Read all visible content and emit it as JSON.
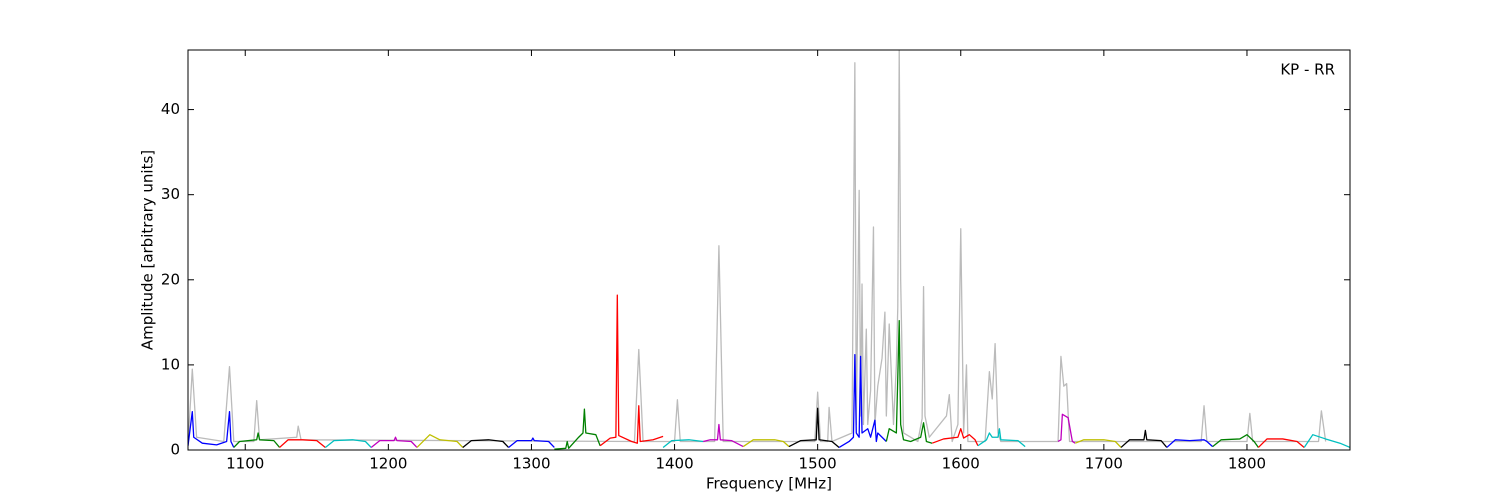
{
  "chart_data": {
    "type": "line",
    "xlabel": "Frequency [MHz]",
    "ylabel": "Amplitude [arbitrary units]",
    "annotation": "KP - RR",
    "xlim": [
      1060,
      1872
    ],
    "ylim": [
      0,
      47
    ],
    "xticks": [
      1100,
      1200,
      1300,
      1400,
      1500,
      1600,
      1700,
      1800
    ],
    "yticks": [
      0,
      10,
      20,
      30,
      40
    ],
    "series": [
      {
        "color": "#bbbbbb",
        "x": [
          1060,
          1063,
          1066,
          1085,
          1089,
          1092,
          1106,
          1108,
          1110,
          1136,
          1137,
          1139,
          1372,
          1375,
          1378,
          1400,
          1402,
          1404,
          1428,
          1431,
          1434,
          1498,
          1500,
          1502,
          1507,
          1508,
          1510,
          1524,
          1526,
          1527,
          1529,
          1530,
          1531,
          1532,
          1534,
          1535,
          1537,
          1539,
          1540,
          1542,
          1545,
          1547,
          1548,
          1550,
          1553,
          1555,
          1556,
          1557,
          1558,
          1560,
          1570,
          1573,
          1574,
          1575,
          1578,
          1590,
          1592,
          1594,
          1598,
          1600,
          1602,
          1604,
          1605,
          1607,
          1617,
          1620,
          1622,
          1624,
          1626,
          1628,
          1668,
          1670,
          1672,
          1674,
          1676,
          1768,
          1770,
          1772,
          1800,
          1802,
          1804,
          1850,
          1852,
          1855
        ],
        "values": [
          0.5,
          9.5,
          1.5,
          1,
          9.8,
          1,
          1,
          5.8,
          1.2,
          1.5,
          2.8,
          1.2,
          1,
          11.8,
          1,
          1,
          5.9,
          1,
          1,
          24,
          1,
          1,
          6.8,
          1,
          1,
          5.0,
          1,
          2,
          45.5,
          3,
          30.5,
          4,
          19.5,
          3,
          14.2,
          3,
          7,
          26.2,
          3,
          7.5,
          10.8,
          16.2,
          4,
          14.8,
          3,
          10,
          16.8,
          47,
          20,
          2,
          1,
          3.7,
          19.2,
          4,
          1.5,
          4,
          6.5,
          1,
          3,
          26,
          2,
          10,
          1,
          1,
          1,
          9.2,
          6,
          12.5,
          2,
          1,
          1,
          11,
          7.5,
          7.8,
          1,
          1,
          5.2,
          1,
          1,
          4.3,
          1,
          1,
          4.6,
          1
        ]
      },
      {
        "color": "#0000ff",
        "x": [
          1060,
          1063,
          1064,
          1070,
          1080,
          1087,
          1089,
          1090,
          1092
        ],
        "values": [
          0.5,
          4.5,
          1.5,
          0.8,
          0.6,
          1,
          4.5,
          1,
          0.3
        ]
      },
      {
        "color": "#008000",
        "x": [
          1092,
          1096,
          1108,
          1109,
          1110,
          1120,
          1124
        ],
        "values": [
          0.3,
          1,
          1.2,
          2,
          1.2,
          1.1,
          0.3
        ]
      },
      {
        "color": "#ff0000",
        "x": [
          1124,
          1130,
          1140,
          1150,
          1156
        ],
        "values": [
          0.3,
          1.2,
          1.2,
          1.1,
          0.3
        ]
      },
      {
        "color": "#00bfbf",
        "x": [
          1156,
          1162,
          1175,
          1184,
          1188
        ],
        "values": [
          0.3,
          1.1,
          1.2,
          1,
          0.3
        ]
      },
      {
        "color": "#bf00bf",
        "x": [
          1188,
          1194,
          1204,
          1205,
          1206,
          1216,
          1220
        ],
        "values": [
          0.3,
          1.1,
          1.1,
          1.5,
          1.1,
          1,
          0.3
        ]
      },
      {
        "color": "#bfbf00",
        "x": [
          1220,
          1229,
          1236,
          1248,
          1252
        ],
        "values": [
          0.3,
          1.8,
          1.2,
          1,
          0.3
        ]
      },
      {
        "color": "#000000",
        "x": [
          1252,
          1258,
          1270,
          1280,
          1284
        ],
        "values": [
          0.3,
          1.1,
          1.2,
          1,
          0.3
        ]
      },
      {
        "color": "#0000ff",
        "x": [
          1284,
          1290,
          1300,
          1301,
          1302,
          1312,
          1316
        ],
        "values": [
          0.3,
          1.1,
          1.1,
          1.4,
          1.1,
          1,
          0.3
        ]
      },
      {
        "color": "#008000",
        "x": [
          1316,
          1324,
          1325,
          1326,
          1333,
          1336,
          1337,
          1338,
          1345,
          1348
        ],
        "values": [
          0.1,
          0.2,
          1,
          0.2,
          1.5,
          2,
          4.8,
          2,
          1.8,
          0.5
        ]
      },
      {
        "color": "#ff0000",
        "x": [
          1348,
          1355,
          1359,
          1360,
          1361,
          1370,
          1374,
          1375,
          1376,
          1385,
          1392
        ],
        "values": [
          0.5,
          1.4,
          1.5,
          18.2,
          1.7,
          1,
          0.8,
          5.2,
          1,
          1.2,
          1.6
        ]
      },
      {
        "color": "#00bfbf",
        "x": [
          1392,
          1398,
          1410,
          1420
        ],
        "values": [
          0.3,
          1.1,
          1.2,
          1
        ]
      },
      {
        "color": "#bf00bf",
        "x": [
          1420,
          1425,
          1430,
          1431,
          1432,
          1440,
          1448
        ],
        "values": [
          1,
          1.2,
          1.2,
          3,
          1.2,
          1.1,
          0.4
        ]
      },
      {
        "color": "#bfbf00",
        "x": [
          1448,
          1455,
          1470,
          1476,
          1480
        ],
        "values": [
          0.4,
          1.2,
          1.2,
          1,
          0.4
        ]
      },
      {
        "color": "#000000",
        "x": [
          1480,
          1488,
          1499,
          1500,
          1501,
          1510,
          1515
        ],
        "values": [
          0.4,
          1.1,
          1.2,
          4.9,
          1.2,
          1,
          0.3
        ]
      },
      {
        "color": "#0000ff",
        "x": [
          1515,
          1522,
          1525,
          1526,
          1527,
          1529,
          1530,
          1531,
          1535,
          1537,
          1540,
          1541,
          1542,
          1548
        ],
        "values": [
          0.3,
          1,
          1.5,
          11.2,
          2,
          1.5,
          11,
          2,
          2.5,
          1.5,
          3.5,
          1,
          2,
          1
        ]
      },
      {
        "color": "#008000",
        "x": [
          1548,
          1550,
          1555,
          1557,
          1558,
          1560,
          1565,
          1572,
          1574,
          1576,
          1580
        ],
        "values": [
          1,
          2.5,
          2,
          15.2,
          3,
          1.2,
          1,
          1.5,
          3.2,
          1,
          0.8
        ]
      },
      {
        "color": "#ff0000",
        "x": [
          1580,
          1588,
          1598,
          1600,
          1602,
          1606,
          1610,
          1612
        ],
        "values": [
          0.8,
          1.3,
          1.5,
          2.5,
          1.4,
          1.8,
          1.2,
          0.5
        ]
      },
      {
        "color": "#00bfbf",
        "x": [
          1612,
          1618,
          1620,
          1622,
          1626,
          1627,
          1628,
          1640,
          1645
        ],
        "values": [
          0.5,
          1.2,
          2,
          1.5,
          1.5,
          2.5,
          1.2,
          1.1,
          0.4
        ]
      },
      {
        "color": "#bf00bf",
        "x": [
          1668,
          1670,
          1671,
          1675,
          1678,
          1680
        ],
        "values": [
          1,
          1.2,
          4.2,
          3.8,
          1,
          0.8
        ]
      },
      {
        "color": "#bfbf00",
        "x": [
          1680,
          1686,
          1700,
          1708,
          1712
        ],
        "values": [
          0.8,
          1.2,
          1.2,
          1,
          0.3
        ]
      },
      {
        "color": "#000000",
        "x": [
          1712,
          1718,
          1728,
          1729,
          1730,
          1740,
          1744
        ],
        "values": [
          0.3,
          1.2,
          1.2,
          2.3,
          1.2,
          1.1,
          0.3
        ]
      },
      {
        "color": "#0000ff",
        "x": [
          1744,
          1750,
          1760,
          1770,
          1772,
          1776
        ],
        "values": [
          0.3,
          1.2,
          1.1,
          1.2,
          1,
          0.4
        ]
      },
      {
        "color": "#008000",
        "x": [
          1776,
          1782,
          1795,
          1800,
          1805,
          1808
        ],
        "values": [
          0.4,
          1.2,
          1.3,
          1.8,
          1,
          0.3
        ]
      },
      {
        "color": "#ff0000",
        "x": [
          1808,
          1814,
          1825,
          1835,
          1840
        ],
        "values": [
          0.3,
          1.3,
          1.3,
          1,
          0.3
        ]
      },
      {
        "color": "#00bfbf",
        "x": [
          1840,
          1846,
          1855,
          1865,
          1872
        ],
        "values": [
          0.3,
          1.8,
          1.3,
          0.8,
          0.3
        ]
      }
    ]
  }
}
